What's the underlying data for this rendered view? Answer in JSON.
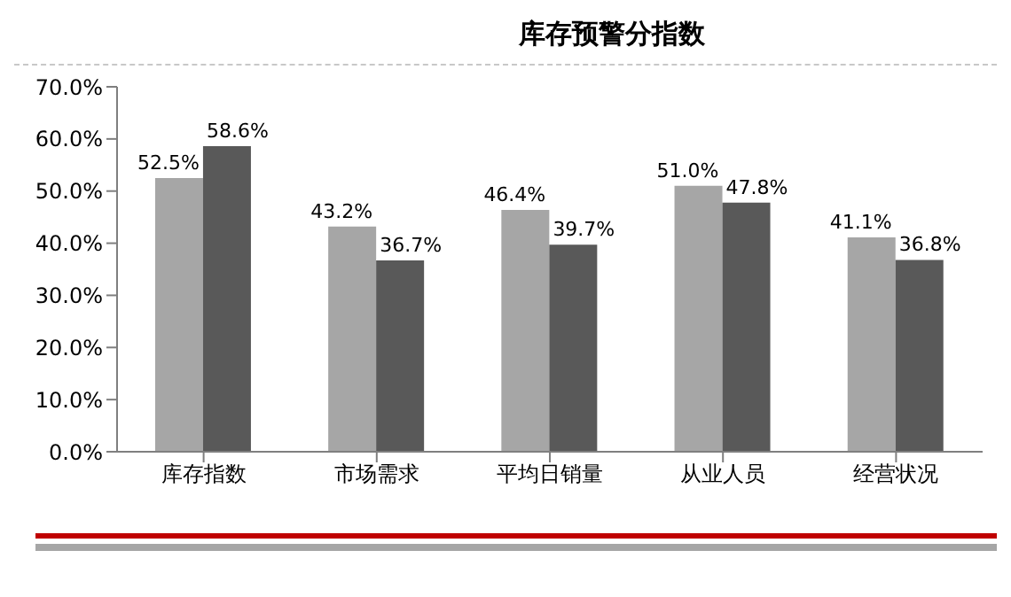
{
  "chart_data": {
    "type": "bar",
    "title": "库存预警分指数",
    "categories": [
      "库存指数",
      "市场需求",
      "平均日销量",
      "从业人员",
      "经营状况"
    ],
    "series": [
      {
        "color": "#a6a6a6",
        "values": [
          52.5,
          43.2,
          46.4,
          51.0,
          41.1
        ],
        "value_labels": [
          "52.5%",
          "43.2%",
          "46.4%",
          "51.0%",
          "41.1%"
        ]
      },
      {
        "color": "#595959",
        "values": [
          58.6,
          36.7,
          39.7,
          47.8,
          36.8
        ],
        "value_labels": [
          "58.6%",
          "36.7%",
          "39.7%",
          "47.8%",
          "36.8%"
        ]
      }
    ],
    "ylim": [
      0,
      70
    ],
    "yticks": [
      {
        "value": 0,
        "label": "0.0%"
      },
      {
        "value": 10,
        "label": "10.0%"
      },
      {
        "value": 20,
        "label": "20.0%"
      },
      {
        "value": 30,
        "label": "30.0%"
      },
      {
        "value": 40,
        "label": "40.0%"
      },
      {
        "value": 50,
        "label": "50.0%"
      },
      {
        "value": 60,
        "label": "60.0%"
      },
      {
        "value": 70,
        "label": "70.0%"
      }
    ],
    "grid": false,
    "legend": false
  }
}
